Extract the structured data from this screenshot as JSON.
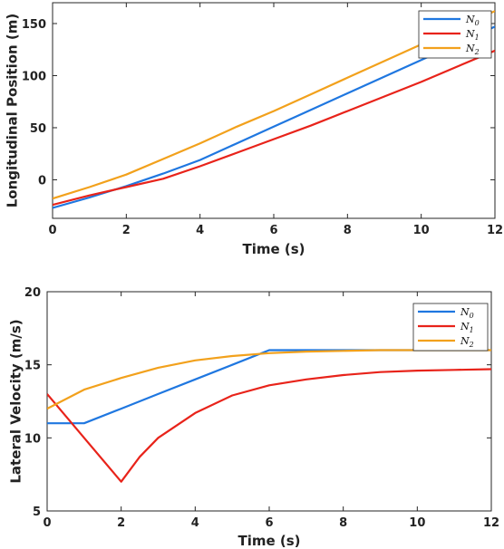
{
  "chart_data": [
    {
      "type": "line",
      "title": "",
      "xlabel": "Time (s)",
      "ylabel": "Longitudinal Position (m)",
      "xlim": [
        0,
        12
      ],
      "ylim": [
        -37,
        170
      ],
      "xticks": [
        0,
        2,
        4,
        6,
        8,
        10,
        12
      ],
      "yticks": [
        0,
        50,
        100,
        150
      ],
      "grid": false,
      "legend_position": "top-right",
      "series": [
        {
          "name": "N0",
          "color": "#1f77e0",
          "x": [
            0,
            1,
            2,
            3,
            4,
            5,
            6,
            7,
            8,
            9,
            10,
            11,
            12
          ],
          "y": [
            -27,
            -17,
            -6,
            6,
            19,
            35,
            51,
            67,
            83,
            99,
            115,
            131,
            147
          ]
        },
        {
          "name": "N1",
          "color": "#e8231a",
          "x": [
            0,
            1,
            2,
            3,
            4,
            5,
            6,
            7,
            8,
            9,
            10,
            11,
            12
          ],
          "y": [
            -24,
            -15,
            -7,
            1,
            13,
            26,
            39,
            52,
            66,
            80,
            94,
            109,
            124
          ]
        },
        {
          "name": "N2",
          "color": "#f2a11c",
          "x": [
            0,
            1,
            2,
            3,
            4,
            5,
            6,
            7,
            8,
            9,
            10,
            11,
            12
          ],
          "y": [
            -18,
            -7,
            5,
            20,
            35,
            51,
            66,
            82,
            98,
            114,
            130,
            146,
            162
          ]
        }
      ]
    },
    {
      "type": "line",
      "title": "",
      "xlabel": "Time (s)",
      "ylabel": "Lateral Velocity (m/s)",
      "xlim": [
        0,
        12
      ],
      "ylim": [
        5,
        20
      ],
      "xticks": [
        0,
        2,
        4,
        6,
        8,
        10,
        12
      ],
      "yticks": [
        5,
        10,
        15,
        20
      ],
      "grid": false,
      "legend_position": "top-right",
      "series": [
        {
          "name": "N0",
          "color": "#1f77e0",
          "x": [
            0,
            1,
            2,
            3,
            4,
            5,
            6,
            8,
            10,
            12
          ],
          "y": [
            11,
            11,
            12,
            13,
            14,
            15,
            16,
            16,
            16,
            16
          ]
        },
        {
          "name": "N1",
          "color": "#e8231a",
          "x": [
            0,
            1,
            2,
            2.5,
            3,
            4,
            5,
            6,
            7,
            8,
            9,
            10,
            11,
            12
          ],
          "y": [
            13,
            10,
            7,
            8.7,
            10,
            11.7,
            12.9,
            13.6,
            14.0,
            14.3,
            14.5,
            14.6,
            14.65,
            14.7
          ]
        },
        {
          "name": "N2",
          "color": "#f2a11c",
          "x": [
            0,
            1,
            2,
            3,
            4,
            5,
            6,
            7,
            8,
            9,
            10,
            11,
            12
          ],
          "y": [
            12,
            13.3,
            14.1,
            14.8,
            15.3,
            15.6,
            15.8,
            15.9,
            15.95,
            16.0,
            16.0,
            16.0,
            16.0
          ]
        }
      ]
    }
  ]
}
